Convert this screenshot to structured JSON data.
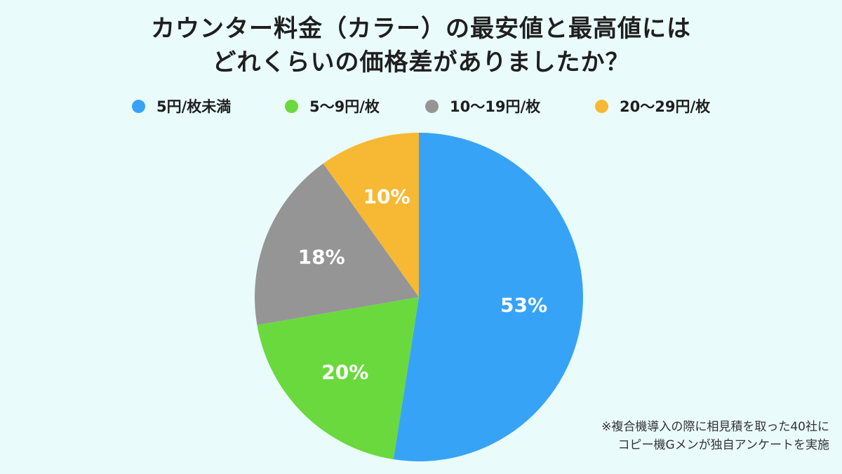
{
  "title": {
    "line1": "カウンター料金（カラー）の最安値と最高値には",
    "line2": "どれくらいの価格差がありましたか？"
  },
  "chart_data": {
    "type": "pie",
    "categories": [
      "5円/枚未満",
      "5〜9円/枚",
      "10〜19円/枚",
      "20〜29円/枚"
    ],
    "values": [
      53,
      20,
      18,
      10
    ],
    "value_labels": [
      "53%",
      "20%",
      "18%",
      "10%"
    ],
    "colors": [
      "#37a3f7",
      "#6ad93d",
      "#959595",
      "#f7b933"
    ],
    "legend_position": "top",
    "start_angle": "12 o'clock, clockwise"
  },
  "note": {
    "line1": "※複合機導入の際に相見積を取った40社に",
    "line2": "コピー機Gメンが独自アンケートを実施"
  }
}
